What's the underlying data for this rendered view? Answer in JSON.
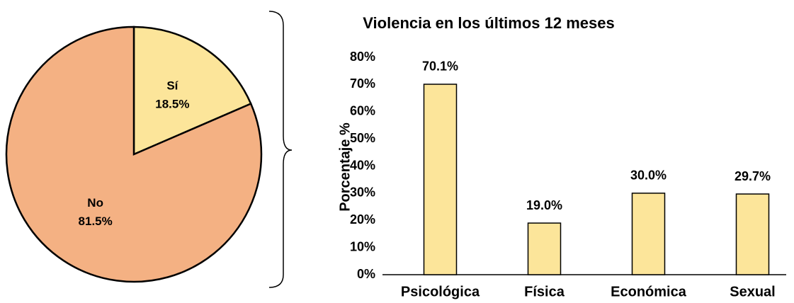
{
  "chart_data": [
    {
      "type": "pie",
      "categories": [
        "Sí",
        "No"
      ],
      "values": [
        18.5,
        81.5
      ],
      "value_labels": [
        "18.5%",
        "81.5%"
      ],
      "colors": [
        "#fce59a",
        "#f4b183"
      ]
    },
    {
      "type": "bar",
      "title": "Violencia en los últimos 12 meses",
      "y_label": "Porcentaje %",
      "categories": [
        "Psicológica",
        "Física",
        "Económica",
        "Sexual"
      ],
      "values": [
        70.1,
        19.0,
        30.0,
        29.7
      ],
      "value_labels": [
        "70.1%",
        "19.0%",
        "30.0%",
        "29.7%"
      ],
      "color": "#fce59a",
      "ylim": [
        0,
        80
      ],
      "yticks": [
        {
          "value": 0,
          "label": "0%"
        },
        {
          "value": 10,
          "label": "10%"
        },
        {
          "value": 20,
          "label": "20%"
        },
        {
          "value": 30,
          "label": "30%"
        },
        {
          "value": 40,
          "label": "40%"
        },
        {
          "value": 50,
          "label": "50%"
        },
        {
          "value": 60,
          "label": "60%"
        },
        {
          "value": 70,
          "label": "70%"
        },
        {
          "value": 80,
          "label": "80%"
        }
      ],
      "grid": false
    }
  ]
}
